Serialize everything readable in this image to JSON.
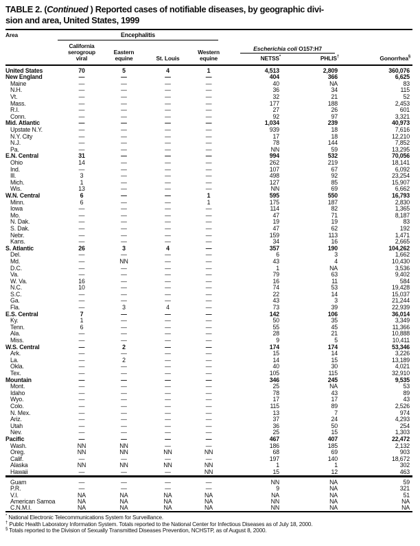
{
  "title": {
    "prefix": "TABLE 2. (",
    "continued": "Continued",
    "line1_rest": " ) Reported cases of notifiable diseases, by geographic divi-",
    "line2": "sion and area, United States, 1999"
  },
  "header": {
    "area_label": "Area",
    "encephalitis_group": "Encephalitis",
    "col_california": "California\nserogroup\nviral",
    "col_eastern": "Eastern\nequine",
    "col_stlouis": "St. Louis",
    "col_western": "Western\nequine",
    "ecoli_group_italic": "Escherichia coli",
    "ecoli_group_rest": " O157:H7",
    "netss_label": "NETSS",
    "netss_marker": "*",
    "phlis_label": "PHLIS",
    "phlis_marker": "†",
    "gonorrhea_label": "Gonorrhea",
    "gonorrhea_marker": "§"
  },
  "rows": [
    {
      "area": "United States",
      "level": "total",
      "v": [
        "70",
        "5",
        "4",
        "1",
        "4,513",
        "2,809",
        "360,076"
      ]
    },
    {
      "area": "New England",
      "level": "division",
      "v": [
        "—",
        "—",
        "—",
        "—",
        "404",
        "366",
        "6,625"
      ]
    },
    {
      "area": "Maine",
      "level": "state",
      "v": [
        "—",
        "—",
        "—",
        "—",
        "40",
        "NA",
        "83"
      ]
    },
    {
      "area": "N.H.",
      "level": "state",
      "v": [
        "—",
        "—",
        "—",
        "—",
        "36",
        "34",
        "115"
      ]
    },
    {
      "area": "Vt.",
      "level": "state",
      "v": [
        "—",
        "—",
        "—",
        "—",
        "32",
        "21",
        "52"
      ]
    },
    {
      "area": "Mass.",
      "level": "state",
      "v": [
        "—",
        "—",
        "—",
        "—",
        "177",
        "188",
        "2,453"
      ]
    },
    {
      "area": "R.I.",
      "level": "state",
      "v": [
        "—",
        "—",
        "—",
        "—",
        "27",
        "26",
        "601"
      ]
    },
    {
      "area": "Conn.",
      "level": "state",
      "v": [
        "—",
        "—",
        "—",
        "—",
        "92",
        "97",
        "3,321"
      ]
    },
    {
      "area": "Mid. Atlantic",
      "level": "division",
      "v": [
        "—",
        "—",
        "—",
        "—",
        "1,034",
        "239",
        "40,973"
      ]
    },
    {
      "area": "Upstate N.Y.",
      "level": "state",
      "v": [
        "—",
        "—",
        "—",
        "—",
        "939",
        "18",
        "7,616"
      ]
    },
    {
      "area": "N.Y. City",
      "level": "state",
      "v": [
        "—",
        "—",
        "—",
        "—",
        "17",
        "18",
        "12,210"
      ]
    },
    {
      "area": "N.J.",
      "level": "state",
      "v": [
        "—",
        "—",
        "—",
        "—",
        "78",
        "144",
        "7,852"
      ]
    },
    {
      "area": "Pa.",
      "level": "state",
      "v": [
        "—",
        "—",
        "—",
        "—",
        "NN",
        "59",
        "13,295"
      ]
    },
    {
      "area": "E.N. Central",
      "level": "division",
      "v": [
        "31",
        "—",
        "—",
        "—",
        "994",
        "532",
        "70,056"
      ]
    },
    {
      "area": "Ohio",
      "level": "state",
      "v": [
        "14",
        "—",
        "—",
        "—",
        "262",
        "219",
        "18,141"
      ]
    },
    {
      "area": "Ind.",
      "level": "state",
      "v": [
        "—",
        "—",
        "—",
        "—",
        "107",
        "67",
        "6,092"
      ]
    },
    {
      "area": "Ill.",
      "level": "state",
      "v": [
        "3",
        "—",
        "—",
        "—",
        "498",
        "92",
        "23,254"
      ]
    },
    {
      "area": "Mich.",
      "level": "state",
      "v": [
        "1",
        "—",
        "—",
        "—",
        "127",
        "85",
        "15,907"
      ]
    },
    {
      "area": "Wis.",
      "level": "state",
      "v": [
        "13",
        "—",
        "—",
        "—",
        "NN",
        "69",
        "6,662"
      ]
    },
    {
      "area": "W.N. Central",
      "level": "division",
      "v": [
        "6",
        "—",
        "—",
        "1",
        "595",
        "550",
        "16,793"
      ]
    },
    {
      "area": "Minn.",
      "level": "state",
      "v": [
        "6",
        "—",
        "—",
        "1",
        "175",
        "187",
        "2,830"
      ]
    },
    {
      "area": "Iowa",
      "level": "state",
      "v": [
        "—",
        "—",
        "—",
        "—",
        "114",
        "82",
        "1,365"
      ]
    },
    {
      "area": "Mo.",
      "level": "state",
      "v": [
        "—",
        "—",
        "—",
        "—",
        "47",
        "71",
        "8,187"
      ]
    },
    {
      "area": "N. Dak.",
      "level": "state",
      "v": [
        "—",
        "—",
        "—",
        "—",
        "19",
        "19",
        "83"
      ]
    },
    {
      "area": "S. Dak.",
      "level": "state",
      "v": [
        "—",
        "—",
        "—",
        "—",
        "47",
        "62",
        "192"
      ]
    },
    {
      "area": "Nebr.",
      "level": "state",
      "v": [
        "—",
        "—",
        "—",
        "—",
        "159",
        "113",
        "1,471"
      ]
    },
    {
      "area": "Kans.",
      "level": "state",
      "v": [
        "—",
        "—",
        "—",
        "—",
        "34",
        "16",
        "2,665"
      ]
    },
    {
      "area": "S. Atlantic",
      "level": "division",
      "v": [
        "26",
        "3",
        "4",
        "—",
        "357",
        "190",
        "104,262"
      ]
    },
    {
      "area": "Del.",
      "level": "state",
      "v": [
        "—",
        "—",
        "—",
        "—",
        "6",
        "3",
        "1,662"
      ]
    },
    {
      "area": "Md.",
      "level": "state",
      "v": [
        "—",
        "NN",
        "—",
        "—",
        "43",
        "4",
        "10,430"
      ]
    },
    {
      "area": "D.C.",
      "level": "state",
      "v": [
        "—",
        "—",
        "—",
        "—",
        "1",
        "NA",
        "3,536"
      ]
    },
    {
      "area": "Va.",
      "level": "state",
      "v": [
        "—",
        "—",
        "—",
        "—",
        "79",
        "63",
        "9,402"
      ]
    },
    {
      "area": "W. Va.",
      "level": "state",
      "v": [
        "16",
        "—",
        "—",
        "—",
        "16",
        "11",
        "584"
      ]
    },
    {
      "area": "N.C.",
      "level": "state",
      "v": [
        "10",
        "—",
        "—",
        "—",
        "74",
        "53",
        "19,428"
      ]
    },
    {
      "area": "S.C.",
      "level": "state",
      "v": [
        "—",
        "—",
        "—",
        "—",
        "22",
        "14",
        "15,037"
      ]
    },
    {
      "area": "Ga.",
      "level": "state",
      "v": [
        "—",
        "—",
        "—",
        "—",
        "43",
        "3",
        "21,244"
      ]
    },
    {
      "area": "Fla.",
      "level": "state",
      "v": [
        "—",
        "3",
        "4",
        "—",
        "73",
        "39",
        "22,939"
      ]
    },
    {
      "area": "E.S. Central",
      "level": "division",
      "v": [
        "7",
        "—",
        "—",
        "—",
        "142",
        "106",
        "36,014"
      ]
    },
    {
      "area": "Ky.",
      "level": "state",
      "v": [
        "1",
        "—",
        "—",
        "—",
        "50",
        "35",
        "3,349"
      ]
    },
    {
      "area": "Tenn.",
      "level": "state",
      "v": [
        "6",
        "—",
        "—",
        "—",
        "55",
        "45",
        "11,366"
      ]
    },
    {
      "area": "Ala.",
      "level": "state",
      "v": [
        "—",
        "—",
        "—",
        "—",
        "28",
        "21",
        "10,888"
      ]
    },
    {
      "area": "Miss.",
      "level": "state",
      "v": [
        "—",
        "—",
        "—",
        "—",
        "9",
        "5",
        "10,411"
      ]
    },
    {
      "area": "W.S. Central",
      "level": "division",
      "v": [
        "—",
        "2",
        "—",
        "—",
        "174",
        "174",
        "53,346"
      ]
    },
    {
      "area": "Ark.",
      "level": "state",
      "v": [
        "—",
        "—",
        "—",
        "—",
        "15",
        "14",
        "3,226"
      ]
    },
    {
      "area": "La.",
      "level": "state",
      "v": [
        "—",
        "2",
        "—",
        "—",
        "14",
        "15",
        "13,189"
      ]
    },
    {
      "area": "Okla.",
      "level": "state",
      "v": [
        "—",
        "—",
        "—",
        "—",
        "40",
        "30",
        "4,021"
      ]
    },
    {
      "area": "Tex.",
      "level": "state",
      "v": [
        "—",
        "—",
        "—",
        "—",
        "105",
        "115",
        "32,910"
      ]
    },
    {
      "area": "Mountain",
      "level": "division",
      "v": [
        "—",
        "—",
        "—",
        "—",
        "346",
        "245",
        "9,535"
      ]
    },
    {
      "area": "Mont.",
      "level": "state",
      "v": [
        "—",
        "—",
        "—",
        "—",
        "25",
        "NA",
        "53"
      ]
    },
    {
      "area": "Idaho",
      "level": "state",
      "v": [
        "—",
        "—",
        "—",
        "—",
        "78",
        "43",
        "89"
      ]
    },
    {
      "area": "Wyo.",
      "level": "state",
      "v": [
        "—",
        "—",
        "—",
        "—",
        "17",
        "17",
        "43"
      ]
    },
    {
      "area": "Colo.",
      "level": "state",
      "v": [
        "—",
        "—",
        "—",
        "—",
        "115",
        "89",
        "2,526"
      ]
    },
    {
      "area": "N. Mex.",
      "level": "state",
      "v": [
        "—",
        "—",
        "—",
        "—",
        "13",
        "7",
        "974"
      ]
    },
    {
      "area": "Ariz.",
      "level": "state",
      "v": [
        "—",
        "—",
        "—",
        "—",
        "37",
        "24",
        "4,293"
      ]
    },
    {
      "area": "Utah",
      "level": "state",
      "v": [
        "—",
        "—",
        "—",
        "—",
        "36",
        "50",
        "254"
      ]
    },
    {
      "area": "Nev.",
      "level": "state",
      "v": [
        "—",
        "—",
        "—",
        "—",
        "25",
        "15",
        "1,303"
      ]
    },
    {
      "area": "Pacific",
      "level": "division",
      "v": [
        "—",
        "—",
        "—",
        "—",
        "467",
        "407",
        "22,472"
      ]
    },
    {
      "area": "Wash.",
      "level": "state",
      "v": [
        "NN",
        "NN",
        "—",
        "—",
        "186",
        "185",
        "2,132"
      ]
    },
    {
      "area": "Oreg.",
      "level": "state",
      "v": [
        "NN",
        "NN",
        "NN",
        "NN",
        "68",
        "69",
        "903"
      ]
    },
    {
      "area": "Calif.",
      "level": "state",
      "v": [
        "—",
        "—",
        "—",
        "—",
        "197",
        "140",
        "18,672"
      ]
    },
    {
      "area": "Alaska",
      "level": "state",
      "v": [
        "NN",
        "NN",
        "NN",
        "NN",
        "1",
        "1",
        "302"
      ]
    },
    {
      "area": "Hawaii",
      "level": "state",
      "v": [
        "—",
        "—",
        "—",
        "NN",
        "15",
        "12",
        "463"
      ]
    }
  ],
  "territory_rows": [
    {
      "area": "Guam",
      "level": "territory",
      "v": [
        "—",
        "—",
        "—",
        "—",
        "NN",
        "NA",
        "59"
      ]
    },
    {
      "area": "P.R.",
      "level": "territory",
      "v": [
        "—",
        "—",
        "—",
        "—",
        "9",
        "NA",
        "321"
      ]
    },
    {
      "area": "V.I.",
      "level": "territory",
      "v": [
        "NA",
        "NA",
        "NA",
        "NA",
        "NA",
        "NA",
        "51"
      ]
    },
    {
      "area": "American Samoa",
      "level": "territory",
      "v": [
        "NA",
        "NA",
        "NA",
        "NA",
        "NN",
        "NA",
        "NA"
      ]
    },
    {
      "area": "C.N.M.I.",
      "level": "territory",
      "v": [
        "NA",
        "NA",
        "NA",
        "NA",
        "NN",
        "NA",
        "NA"
      ]
    }
  ],
  "footnotes": [
    {
      "marker": "*",
      "text": "National Electronic Telecommunications System for Surveillance."
    },
    {
      "marker": "†",
      "text": "Public Health Laboratory Information System. Totals reported to the National Center for Infectious Diseases as of July 18, 2000."
    },
    {
      "marker": "§",
      "text": "Totals reported to the Division of Sexually Transmitted Diseases Prevention, NCHSTP, as of August 8, 2000."
    }
  ]
}
